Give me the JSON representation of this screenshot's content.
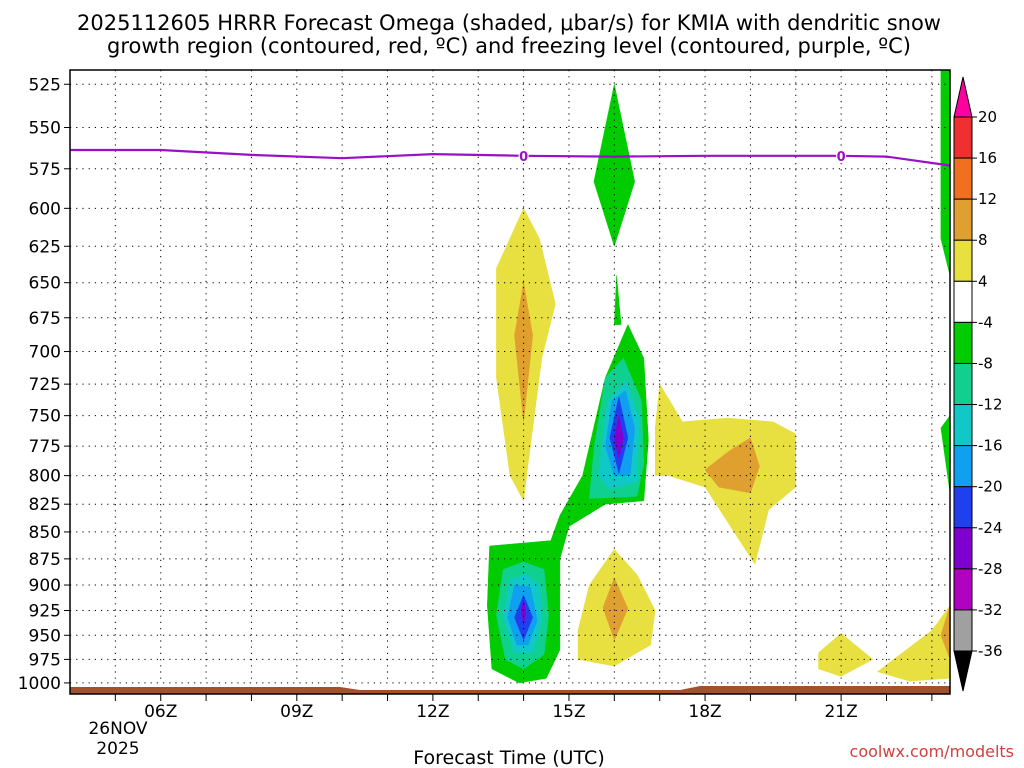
{
  "chart_data": {
    "type": "heatmap",
    "title_line1": "2025112605 HRRR Forecast Omega (shaded, μbar/s) for KMIA with dendritic snow",
    "title_line2": "growth region (contoured, red, ºC) and freezing level (contoured, purple, ºC)",
    "xlabel": "Forecast Time (UTC)",
    "credit": "coolwx.com/modelts",
    "date_label_1": "26NOV",
    "date_label_2": "2025",
    "x_range_hours": [
      4.0,
      23.4
    ],
    "y_range_hpa": [
      517,
      1012
    ],
    "x_ticks": [
      {
        "hour": 6,
        "label": "06Z"
      },
      {
        "hour": 9,
        "label": "09Z"
      },
      {
        "hour": 12,
        "label": "12Z"
      },
      {
        "hour": 15,
        "label": "15Z"
      },
      {
        "hour": 18,
        "label": "18Z"
      },
      {
        "hour": 21,
        "label": "21Z"
      }
    ],
    "y_ticks": [
      {
        "p": 525,
        "label": "525"
      },
      {
        "p": 550,
        "label": "550"
      },
      {
        "p": 575,
        "label": "575"
      },
      {
        "p": 600,
        "label": "600"
      },
      {
        "p": 625,
        "label": "625"
      },
      {
        "p": 650,
        "label": "650"
      },
      {
        "p": 675,
        "label": "675"
      },
      {
        "p": 700,
        "label": "700"
      },
      {
        "p": 725,
        "label": "725"
      },
      {
        "p": 750,
        "label": "750"
      },
      {
        "p": 775,
        "label": "775"
      },
      {
        "p": 800,
        "label": "800"
      },
      {
        "p": 825,
        "label": "825"
      },
      {
        "p": 850,
        "label": "850"
      },
      {
        "p": 875,
        "label": "875"
      },
      {
        "p": 900,
        "label": "900"
      },
      {
        "p": 925,
        "label": "925"
      },
      {
        "p": 950,
        "label": "950"
      },
      {
        "p": 975,
        "label": "975"
      },
      {
        "p": 1000,
        "label": "1000"
      }
    ],
    "colorbar": {
      "bins": [
        {
          "color": "#ff00a0"
        },
        {
          "color": "#f03030"
        },
        {
          "color": "#f07020"
        },
        {
          "color": "#e0a030"
        },
        {
          "color": "#e8e040"
        },
        {
          "color": "#ffffff"
        },
        {
          "color": "#00cc00"
        },
        {
          "color": "#10d090"
        },
        {
          "color": "#10c8c8"
        },
        {
          "color": "#10a0f0"
        },
        {
          "color": "#2040f0"
        },
        {
          "color": "#8000d0"
        },
        {
          "color": "#b000c0"
        },
        {
          "color": "#a0a0a0"
        },
        {
          "color": "#000000"
        }
      ],
      "labels": [
        "20",
        "16",
        "12",
        "8",
        "4",
        "-4",
        "-8",
        "-12",
        "-16",
        "-20",
        "-24",
        "-28",
        "-32",
        "-36"
      ]
    },
    "freezing_level": {
      "color": "#9a10c8",
      "contour_label": "0",
      "label_hours": [
        14.0,
        21.0
      ],
      "points": [
        [
          4.0,
          563.5
        ],
        [
          6.0,
          563.5
        ],
        [
          8.0,
          566.5
        ],
        [
          10.0,
          568.5
        ],
        [
          12.0,
          566
        ],
        [
          14.0,
          567
        ],
        [
          16.0,
          567.5
        ],
        [
          18.0,
          567
        ],
        [
          20.0,
          567
        ],
        [
          21.0,
          567
        ],
        [
          22.0,
          567.5
        ],
        [
          23.4,
          573
        ]
      ]
    },
    "shading": [
      {
        "level": -8,
        "color": "#00cc00",
        "polys": [
          [
            [
              13.25,
              863
            ],
            [
              14.6,
              858
            ],
            [
              14.8,
              835
            ],
            [
              15.3,
              800
            ],
            [
              15.8,
              720
            ],
            [
              16.3,
              680
            ],
            [
              16.65,
              705
            ],
            [
              16.75,
              770
            ],
            [
              16.65,
              822
            ],
            [
              15.8,
              825
            ],
            [
              15.0,
              845
            ],
            [
              14.8,
              875
            ],
            [
              14.8,
              965
            ],
            [
              14.5,
              995
            ],
            [
              13.9,
              1000
            ],
            [
              13.3,
              985
            ],
            [
              13.2,
              920
            ]
          ],
          [
            [
              16.0,
              680
            ],
            [
              16.05,
              645
            ],
            [
              16.15,
              680
            ]
          ],
          [
            [
              15.55,
              583
            ],
            [
              16.0,
              525
            ],
            [
              16.45,
              583
            ],
            [
              16.0,
              625
            ]
          ],
          [
            [
              23.2,
              517
            ],
            [
              23.4,
              517
            ],
            [
              23.4,
              645
            ],
            [
              23.2,
              620
            ]
          ],
          [
            [
              23.2,
              760
            ],
            [
              23.4,
              750
            ],
            [
              23.4,
              815
            ]
          ]
        ]
      },
      {
        "level": -12,
        "color": "#10d090",
        "polys": [
          [
            [
              15.45,
              820
            ],
            [
              15.55,
              778
            ],
            [
              15.8,
              720
            ],
            [
              16.2,
              705
            ],
            [
              16.6,
              738
            ],
            [
              16.65,
              790
            ],
            [
              16.5,
              818
            ]
          ],
          [
            [
              13.4,
              930
            ],
            [
              13.55,
              885
            ],
            [
              14.0,
              878
            ],
            [
              14.45,
              885
            ],
            [
              14.55,
              930
            ],
            [
              14.45,
              970
            ],
            [
              14.0,
              985
            ],
            [
              13.6,
              975
            ]
          ]
        ]
      },
      {
        "level": -16,
        "color": "#10c8c8",
        "polys": [
          [
            [
              15.65,
              800
            ],
            [
              15.85,
              738
            ],
            [
              16.25,
              722
            ],
            [
              16.55,
              752
            ],
            [
              16.5,
              805
            ],
            [
              15.9,
              812
            ]
          ],
          [
            [
              13.55,
              930
            ],
            [
              13.7,
              895
            ],
            [
              14.05,
              890
            ],
            [
              14.35,
              900
            ],
            [
              14.4,
              935
            ],
            [
              14.2,
              968
            ],
            [
              13.8,
              968
            ]
          ]
        ]
      },
      {
        "level": -20,
        "color": "#10a0f0",
        "polys": [
          [
            [
              15.8,
              775
            ],
            [
              15.95,
              738
            ],
            [
              16.25,
              730
            ],
            [
              16.45,
              760
            ],
            [
              16.35,
              800
            ],
            [
              16.0,
              800
            ]
          ],
          [
            [
              13.65,
              932
            ],
            [
              13.8,
              900
            ],
            [
              14.15,
              902
            ],
            [
              14.3,
              935
            ],
            [
              14.1,
              960
            ],
            [
              13.85,
              960
            ]
          ]
        ]
      },
      {
        "level": -24,
        "color": "#2040f0",
        "polys": [
          [
            [
              15.9,
              768
            ],
            [
              16.1,
              735
            ],
            [
              16.3,
              768
            ],
            [
              16.1,
              798
            ]
          ],
          [
            [
              13.8,
              932
            ],
            [
              14.0,
              910
            ],
            [
              14.2,
              932
            ],
            [
              14.0,
              955
            ]
          ]
        ]
      },
      {
        "level": -28,
        "color": "#8000d0",
        "polys": [
          [
            [
              16.0,
              768
            ],
            [
              16.1,
              750
            ],
            [
              16.2,
              768
            ],
            [
              16.1,
              785
            ]
          ],
          [
            [
              13.95,
              925
            ],
            [
              14.0,
              915
            ],
            [
              14.05,
              925
            ],
            [
              14.0,
              940
            ]
          ]
        ]
      },
      {
        "level": 4,
        "color": "#e8e040",
        "polys": [
          [
            [
              13.4,
              640
            ],
            [
              14.0,
              600
            ],
            [
              14.35,
              620
            ],
            [
              14.7,
              665
            ],
            [
              14.4,
              705
            ],
            [
              14.1,
              790
            ],
            [
              14.0,
              822
            ],
            [
              13.7,
              800
            ],
            [
              13.4,
              720
            ]
          ],
          [
            [
              15.2,
              945
            ],
            [
              15.45,
              900
            ],
            [
              16.0,
              866
            ],
            [
              16.5,
              890
            ],
            [
              16.9,
              925
            ],
            [
              16.8,
              960
            ],
            [
              16.0,
              982
            ],
            [
              15.2,
              975
            ]
          ],
          [
            [
              16.9,
              760
            ],
            [
              17.0,
              725
            ],
            [
              17.5,
              755
            ],
            [
              18.5,
              752
            ],
            [
              19.5,
              755
            ],
            [
              20.0,
              765
            ],
            [
              20.0,
              810
            ],
            [
              19.4,
              830
            ],
            [
              19.1,
              880
            ],
            [
              18.0,
              810
            ],
            [
              17.2,
              800
            ],
            [
              16.9,
              800
            ]
          ],
          [
            [
              20.5,
              968
            ],
            [
              21.0,
              948
            ],
            [
              21.7,
              975
            ],
            [
              21.0,
              993
            ],
            [
              20.5,
              985
            ]
          ],
          [
            [
              21.8,
              988
            ],
            [
              23.0,
              945
            ],
            [
              23.4,
              920
            ],
            [
              23.4,
              995
            ],
            [
              22.5,
              998
            ]
          ]
        ]
      },
      {
        "level": 8,
        "color": "#e0a030",
        "polys": [
          [
            [
              13.8,
              688
            ],
            [
              14.0,
              650
            ],
            [
              14.2,
              688
            ],
            [
              14.0,
              755
            ]
          ],
          [
            [
              18.0,
              795
            ],
            [
              18.5,
              780
            ],
            [
              19.0,
              768
            ],
            [
              19.2,
              792
            ],
            [
              19.0,
              815
            ],
            [
              18.3,
              810
            ]
          ],
          [
            [
              15.75,
              922
            ],
            [
              16.0,
              893
            ],
            [
              16.3,
              923
            ],
            [
              16.0,
              955
            ]
          ],
          [
            [
              23.2,
              950
            ],
            [
              23.4,
              920
            ],
            [
              23.4,
              975
            ]
          ]
        ]
      }
    ],
    "ground": {
      "color": "#a0522d"
    }
  }
}
